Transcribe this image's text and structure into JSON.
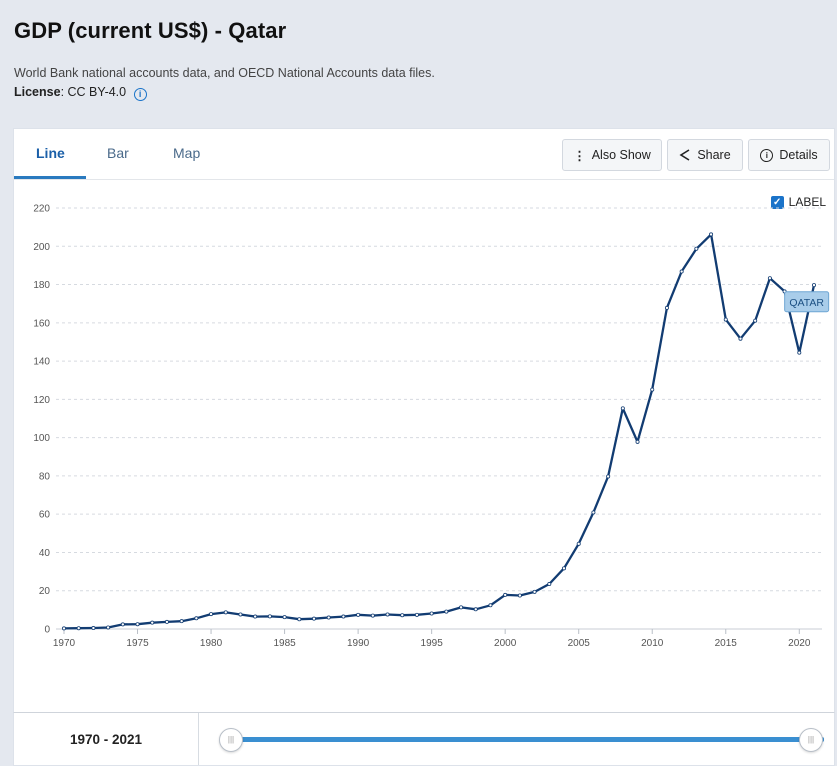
{
  "header": {
    "title": "GDP (current US$) - Qatar",
    "source": "World Bank national accounts data, and OECD National Accounts data files.",
    "license_label": "License",
    "license_value": ": CC BY-4.0"
  },
  "tabs": [
    {
      "label": "Line",
      "active": true
    },
    {
      "label": "Bar",
      "active": false
    },
    {
      "label": "Map",
      "active": false
    }
  ],
  "toolbar": {
    "also_show": "Also Show",
    "share": "Share",
    "details": "Details"
  },
  "label_toggle": {
    "label": "LABEL",
    "checked": true
  },
  "range": {
    "text": "1970 - 2021",
    "start": 1970,
    "end": 2021
  },
  "colors": {
    "line": "#123c72",
    "accent": "#2a7abf"
  },
  "chart_data": {
    "type": "line",
    "title": "",
    "xlabel": "",
    "ylabel": "",
    "xlim": [
      1970,
      2021
    ],
    "ylim": [
      0,
      220
    ],
    "xticks": [
      1970,
      1975,
      1980,
      1985,
      1990,
      1995,
      2000,
      2005,
      2010,
      2015,
      2020
    ],
    "yticks": [
      0,
      20,
      40,
      60,
      80,
      100,
      120,
      140,
      160,
      180,
      200,
      220
    ],
    "grid": true,
    "series": [
      {
        "name": "QATAR",
        "x": [
          1970,
          1971,
          1972,
          1973,
          1974,
          1975,
          1976,
          1977,
          1978,
          1979,
          1980,
          1981,
          1982,
          1983,
          1984,
          1985,
          1986,
          1987,
          1988,
          1989,
          1990,
          1991,
          1992,
          1993,
          1994,
          1995,
          1996,
          1997,
          1998,
          1999,
          2000,
          2001,
          2002,
          2003,
          2004,
          2005,
          2006,
          2007,
          2008,
          2009,
          2010,
          2011,
          2012,
          2013,
          2014,
          2015,
          2016,
          2017,
          2018,
          2019,
          2020,
          2021
        ],
        "values": [
          0.3,
          0.4,
          0.5,
          0.8,
          2.4,
          2.5,
          3.3,
          3.7,
          4.1,
          5.6,
          7.8,
          8.7,
          7.6,
          6.5,
          6.6,
          6.2,
          5.1,
          5.4,
          6.0,
          6.5,
          7.4,
          7.0,
          7.6,
          7.2,
          7.4,
          8.1,
          9.1,
          11.3,
          10.3,
          12.4,
          17.8,
          17.5,
          19.4,
          23.5,
          31.7,
          44.5,
          60.9,
          79.7,
          115.3,
          97.8,
          125.1,
          167.8,
          186.8,
          198.7,
          206.2,
          161.7,
          151.7,
          161.1,
          183.3,
          176.4,
          144.4,
          179.7
        ]
      }
    ],
    "annotation": "QATAR"
  }
}
